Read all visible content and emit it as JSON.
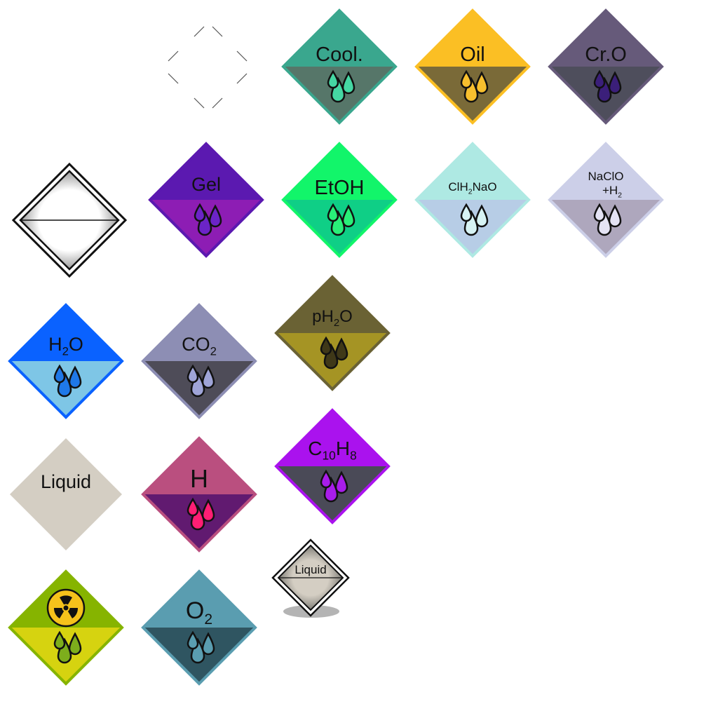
{
  "labels": {
    "coolant": "Cool.",
    "oil": "Oil",
    "cro": "Cr.O",
    "gel": "Gel",
    "etoh": "EtOH",
    "saline_a": "ClH",
    "saline_sub": "2",
    "saline_b": "NaO",
    "naclo_a": "NaClO",
    "naclo_b": "+H",
    "naclo_sub": "2",
    "water_a": "H",
    "water_sub": "2",
    "water_b": "O",
    "co2_a": "CO",
    "co2_sub": "2",
    "ph2o_a": "pH",
    "ph2o_sub": "2",
    "ph2o_b": "O",
    "liquid": "Liquid",
    "h": "H",
    "naph_a": "C",
    "naph_sub1": "10",
    "naph_b": "H",
    "naph_sub2": "8",
    "o2_a": "O",
    "o2_sub": "2",
    "liquid_small": "Liquid"
  },
  "colors": {
    "coolant": {
      "top": "#3aa78e",
      "bottom": "#567669",
      "drop": "#45d7a3"
    },
    "oil": {
      "top": "#fbbf24",
      "bottom": "#7a6a38",
      "drop": "#f7bf2e"
    },
    "cro": {
      "top": "#665a7a",
      "bottom": "#4e4e5c",
      "drop": "#3b1f7a"
    },
    "gel": {
      "top": "#5b19b0",
      "bottom": "#8d1db4",
      "drop": "#6b24c7"
    },
    "etoh": {
      "top": "#12f56a",
      "bottom": "#0fcf86",
      "drop": "#29ef78"
    },
    "saline": {
      "top": "#aee9e3",
      "bottom": "#b7cde6",
      "drop": "#d7f3f4"
    },
    "naclo": {
      "top": "#cccfe8",
      "bottom": "#aea7bd",
      "drop": "#e4e3f4"
    },
    "water": {
      "top": "#0a62ff",
      "bottom": "#7ec6e6",
      "drop": "#1f78e8"
    },
    "co2": {
      "top": "#8d8eb4",
      "bottom": "#4e4c58",
      "drop": "#9fa4d7"
    },
    "ph2o": {
      "top": "#6a6234",
      "bottom": "#a59424",
      "drop": "#3f3818"
    },
    "liquid": {
      "top": "#d4cec3",
      "bottom": "#d4cec3"
    },
    "hydrogen": {
      "top": "#ba4f7f",
      "bottom": "#611a70",
      "drop": "#ff1e74"
    },
    "naph": {
      "top": "#aa12ee",
      "bottom": "#4a4a57",
      "drop": "#a81dea"
    },
    "radio": {
      "top": "#86b400",
      "bottom": "#d6d310",
      "drop": "#7dae1c"
    },
    "oxygen": {
      "top": "#5a9db0",
      "bottom": "#2f5561",
      "drop": "#5a9db0"
    }
  }
}
